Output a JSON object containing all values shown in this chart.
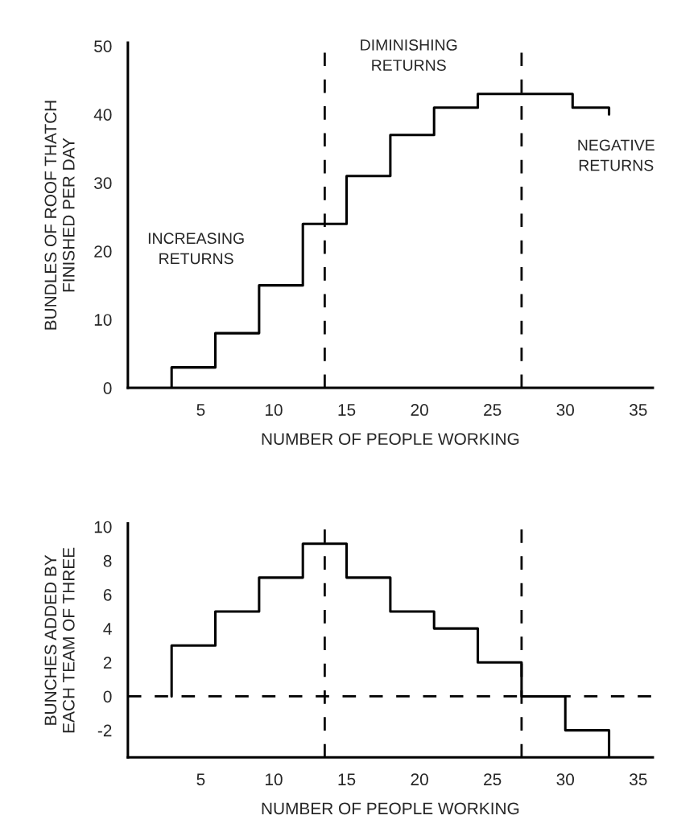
{
  "chart_data": [
    {
      "type": "step",
      "xlabel": "NUMBER OF PEOPLE WORKING",
      "ylabel": "BUNDLES OF ROOF THATCH\nFINISHED PER DAY",
      "x": [
        3,
        3,
        6,
        9,
        12,
        15,
        18,
        21,
        24,
        30.5,
        33,
        33
      ],
      "series": [
        {
          "color": "#000000",
          "values": [
            0,
            3,
            8,
            15,
            24,
            31,
            37,
            41,
            43,
            41,
            41,
            40
          ]
        }
      ],
      "xlim": [
        0,
        36
      ],
      "xticks": [
        5,
        10,
        15,
        20,
        25,
        30,
        35
      ],
      "ylim": [
        0,
        50.5
      ],
      "yticks": [
        0,
        10,
        20,
        30,
        40,
        50
      ],
      "ref_lines": [
        {
          "axis": "x",
          "value": 13.5,
          "line_style": "dashed",
          "color": "#000000"
        },
        {
          "axis": "x",
          "value": 27,
          "line_style": "dashed",
          "color": "#000000"
        }
      ],
      "annotations": [
        "INCREASING\nRETURNS",
        "DIMINISHING\nRETURNS",
        "NEGATIVE\nRETURNS"
      ],
      "grid": false,
      "legend": false
    },
    {
      "type": "step",
      "xlabel": "NUMBER OF PEOPLE WORKING",
      "ylabel": "BUNCHES ADDED BY\nEACH TEAM OF THREE",
      "x": [
        3,
        3,
        6,
        9,
        12,
        15,
        18,
        21,
        24,
        27,
        30,
        33,
        33
      ],
      "series": [
        {
          "color": "#000000",
          "values": [
            0,
            3,
            5,
            7,
            9,
            7,
            5,
            4,
            2,
            0,
            -2,
            -2,
            -3.6
          ]
        }
      ],
      "xlim": [
        0,
        36
      ],
      "xticks": [
        5,
        10,
        15,
        20,
        25,
        30,
        35
      ],
      "ylim": [
        -3.6,
        10.2
      ],
      "yticks": [
        {
          "value": -2,
          "label": "-2"
        },
        0,
        2,
        4,
        6,
        8,
        10
      ],
      "ref_lines": [
        {
          "axis": "x",
          "value": 13.5,
          "line_style": "dashed",
          "color": "#000000"
        },
        {
          "axis": "x",
          "value": 27,
          "line_style": "dashed",
          "color": "#000000"
        },
        {
          "axis": "y",
          "value": 0,
          "line_style": "dashed",
          "color": "#000000"
        }
      ],
      "grid": false,
      "legend": false
    }
  ]
}
